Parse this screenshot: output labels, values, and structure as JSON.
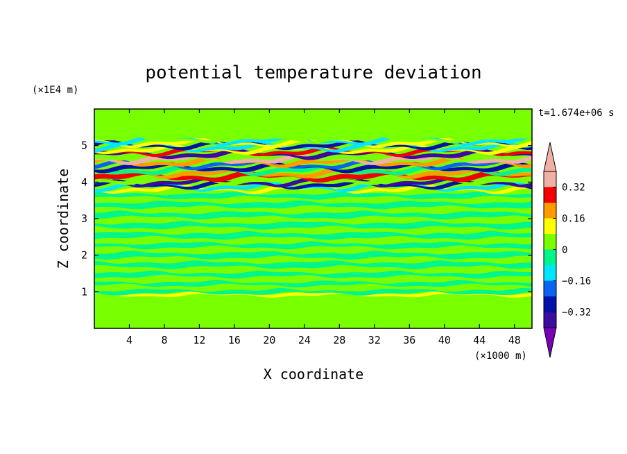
{
  "chart_data": {
    "type": "heatmap",
    "title": "potential temperature deviation",
    "xlabel": "X coordinate",
    "ylabel": "Z coordinate",
    "x_unit": "(×1000 m)",
    "y_unit": "(×1E4 m)",
    "time_label": "t=1.674e+06 s",
    "xlim": [
      0,
      50
    ],
    "ylim": [
      0,
      6
    ],
    "x_ticks": [
      4,
      8,
      12,
      16,
      20,
      24,
      28,
      32,
      36,
      40,
      44,
      48
    ],
    "y_ticks": [
      1,
      2,
      3,
      4,
      5
    ],
    "x_tick_labels": [
      "4",
      "8",
      "12",
      "16",
      "20",
      "24",
      "28",
      "32",
      "36",
      "40",
      "44",
      "48"
    ],
    "y_tick_labels": [
      "1",
      "2",
      "3",
      "4",
      "5"
    ],
    "colorbar": {
      "levels": [
        -0.4,
        -0.32,
        -0.24,
        -0.16,
        -0.08,
        0,
        0.08,
        0.16,
        0.24,
        0.32,
        0.4
      ],
      "tick_values": [
        0.32,
        0.16,
        0,
        -0.16,
        -0.32
      ],
      "tick_labels": [
        "0.32",
        "0.16",
        "0",
        "−0.16",
        "−0.32"
      ],
      "colors": [
        "#7a00b8",
        "#3c0ba0",
        "#0012a8",
        "#0a64f0",
        "#00e6ff",
        "#00f58c",
        "#78ff00",
        "#ffff00",
        "#ff9a00",
        "#f00000",
        "#f0b0a6"
      ],
      "extend": "both"
    },
    "bands": [
      {
        "z": 0.0,
        "h": 0.9,
        "value": 0.0
      },
      {
        "z": 0.9,
        "h": 0.06,
        "value": 0.1
      },
      {
        "z": 0.96,
        "h": 0.1,
        "value": -0.04
      },
      {
        "z": 1.06,
        "h": 0.12,
        "value": 0.04
      },
      {
        "z": 1.18,
        "h": 0.1,
        "value": -0.04
      },
      {
        "z": 1.28,
        "h": 0.14,
        "value": 0.04
      },
      {
        "z": 1.42,
        "h": 0.12,
        "value": -0.04
      },
      {
        "z": 1.54,
        "h": 0.14,
        "value": 0.04
      },
      {
        "z": 1.68,
        "h": 0.14,
        "value": -0.04
      },
      {
        "z": 1.82,
        "h": 0.12,
        "value": 0.04
      },
      {
        "z": 1.94,
        "h": 0.14,
        "value": -0.04
      },
      {
        "z": 2.08,
        "h": 0.14,
        "value": 0.04
      },
      {
        "z": 2.22,
        "h": 0.12,
        "value": -0.04
      },
      {
        "z": 2.34,
        "h": 0.14,
        "value": 0.04
      },
      {
        "z": 2.48,
        "h": 0.14,
        "value": -0.04
      },
      {
        "z": 2.62,
        "h": 0.14,
        "value": 0.04
      },
      {
        "z": 2.76,
        "h": 0.14,
        "value": -0.04
      },
      {
        "z": 2.9,
        "h": 0.14,
        "value": 0.04
      },
      {
        "z": 3.04,
        "h": 0.14,
        "value": -0.04
      },
      {
        "z": 3.18,
        "h": 0.14,
        "value": 0.04
      },
      {
        "z": 3.32,
        "h": 0.14,
        "value": -0.04
      },
      {
        "z": 3.46,
        "h": 0.12,
        "value": 0.04
      },
      {
        "z": 3.58,
        "h": 0.12,
        "value": -0.04
      },
      {
        "z": 3.7,
        "h": 0.08,
        "value": 0.04
      },
      {
        "z": 3.78,
        "h": 0.06,
        "value": 0.12
      },
      {
        "z": 3.84,
        "h": 0.06,
        "value": -0.12
      },
      {
        "z": 3.9,
        "h": 0.06,
        "value": -0.28
      },
      {
        "z": 3.96,
        "h": 0.06,
        "value": -0.36
      },
      {
        "z": 4.02,
        "h": 0.08,
        "value": 0.04
      },
      {
        "z": 4.1,
        "h": 0.1,
        "value": 0.28
      },
      {
        "z": 4.2,
        "h": 0.08,
        "value": 0.2
      },
      {
        "z": 4.28,
        "h": 0.08,
        "value": -0.04
      },
      {
        "z": 4.36,
        "h": 0.08,
        "value": -0.28
      },
      {
        "z": 4.44,
        "h": 0.06,
        "value": -0.2
      },
      {
        "z": 4.5,
        "h": 0.08,
        "value": 0.2
      },
      {
        "z": 4.58,
        "h": 0.08,
        "value": 0.36
      },
      {
        "z": 4.66,
        "h": 0.06,
        "value": 0.04
      },
      {
        "z": 4.72,
        "h": 0.08,
        "value": -0.36
      },
      {
        "z": 4.8,
        "h": 0.06,
        "value": 0.28
      },
      {
        "z": 4.86,
        "h": 0.06,
        "value": 0.12
      },
      {
        "z": 4.92,
        "h": 0.06,
        "value": -0.12
      },
      {
        "z": 4.98,
        "h": 0.06,
        "value": -0.28
      },
      {
        "z": 5.04,
        "h": 0.06,
        "value": 0.12
      },
      {
        "z": 5.1,
        "h": 0.06,
        "value": -0.12
      },
      {
        "z": 5.16,
        "h": 0.06,
        "value": 0.04
      },
      {
        "z": 5.22,
        "h": 0.78,
        "value": 0.04
      }
    ]
  }
}
